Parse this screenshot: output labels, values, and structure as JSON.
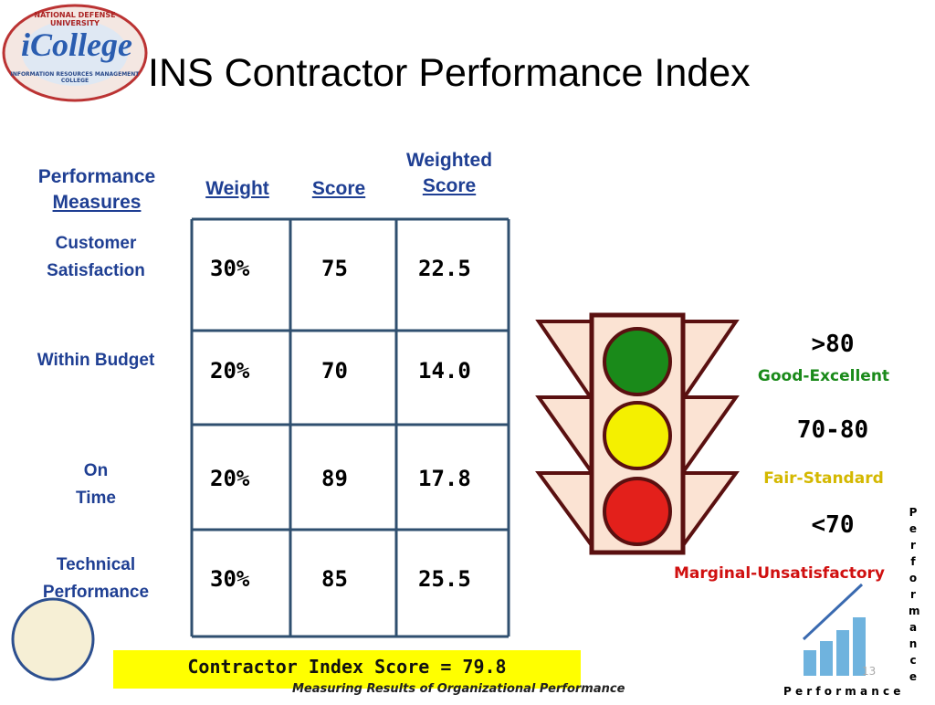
{
  "logo": {
    "top": "NATIONAL DEFENSE UNIVERSITY",
    "name": "iCollege",
    "bottom": "INFORMATION RESOURCES MANAGEMENT COLLEGE"
  },
  "title": "INS Contractor Performance Index",
  "table": {
    "headers": [
      [
        "Performance",
        "Measures"
      ],
      "Weight",
      "Score",
      [
        "Weighted",
        "Score"
      ]
    ],
    "rows": [
      [
        [
          "Customer",
          "Satisfaction"
        ],
        "30%",
        "75",
        "22.5"
      ],
      [
        [
          "Within Budget"
        ],
        "20%",
        "70",
        "14.0"
      ],
      [
        [
          "On",
          "Time"
        ],
        "20%",
        "89",
        "17.8"
      ],
      [
        [
          "Technical",
          "Performance"
        ],
        "30%",
        "85",
        "25.5"
      ]
    ]
  },
  "legend": [
    {
      "range": ">80",
      "label": "Good-Excellent"
    },
    {
      "range": "70-80",
      "label": "Fair-Standard"
    },
    {
      "range": "<70",
      "label": "Marginal-Unsatisfactory"
    }
  ],
  "summary": "Contractor Index Score = 79.8",
  "footer": "Measuring Results of Organizational Performance",
  "side_word": "Performance",
  "bottom_word": "P e r f o r m a n c e",
  "page_number": "13"
}
